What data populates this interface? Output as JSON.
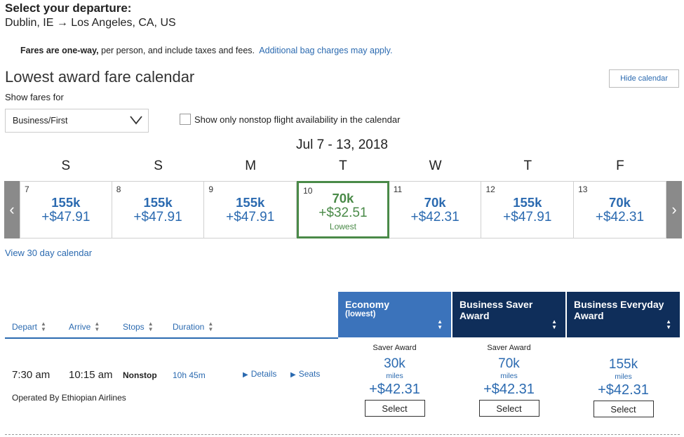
{
  "header": {
    "title": "Select your departure:",
    "route": "Dublin, IE → Los Angeles, CA, US"
  },
  "fares_note": {
    "bold": "Fares are one-way,",
    "text": " per person, and include taxes and fees.",
    "link": "Additional bag charges may apply."
  },
  "calendar": {
    "title": "Lowest award fare calendar",
    "hide_label": "Hide calendar",
    "show_fares_label": "Show fares for",
    "cabin_selected": "Business/First",
    "nonstop_label": "Show only nonstop flight availability in the calendar",
    "week_label": "Jul 7 - 13, 2018",
    "dows": [
      "S",
      "S",
      "M",
      "T",
      "W",
      "T",
      "F"
    ],
    "days": [
      {
        "num": "7",
        "miles": "155k",
        "tax": "+$47.91"
      },
      {
        "num": "8",
        "miles": "155k",
        "tax": "+$47.91"
      },
      {
        "num": "9",
        "miles": "155k",
        "tax": "+$47.91"
      },
      {
        "num": "10",
        "miles": "70k",
        "tax": "+$32.51",
        "tag": "Lowest"
      },
      {
        "num": "11",
        "miles": "70k",
        "tax": "+$42.31"
      },
      {
        "num": "12",
        "miles": "155k",
        "tax": "+$47.91"
      },
      {
        "num": "13",
        "miles": "70k",
        "tax": "+$42.31"
      }
    ],
    "prev_glyph": "‹",
    "next_glyph": "›",
    "view30_label": "View 30 day calendar"
  },
  "table": {
    "columns": {
      "depart": "Depart",
      "arrive": "Arrive",
      "stops": "Stops",
      "duration": "Duration"
    },
    "fare_columns": [
      {
        "title": "Economy",
        "sub": "(lowest)"
      },
      {
        "title": "Business Saver Award"
      },
      {
        "title": "Business Everyday Award"
      }
    ],
    "flight": {
      "depart": "7:30 am",
      "arrive": "10:15 am",
      "stops": "Nonstop",
      "duration": "10h 45m",
      "details": "Details",
      "seats": "Seats",
      "operated": "Operated By Ethiopian Airlines",
      "fares": [
        {
          "saver": "Saver Award",
          "miles": "30k",
          "miles_label": "miles",
          "tax": "+$42.31",
          "select": "Select"
        },
        {
          "saver": "Saver Award",
          "miles": "70k",
          "miles_label": "miles",
          "tax": "+$42.31",
          "select": "Select"
        },
        {
          "saver": "",
          "miles": "155k",
          "miles_label": "miles",
          "tax": "+$42.31",
          "select": "Select"
        }
      ]
    }
  },
  "colors": {
    "link": "#2b6ab0",
    "lowest": "#4a8a48",
    "economy_header": "#3b73bb",
    "business_header": "#0f2e5a"
  }
}
